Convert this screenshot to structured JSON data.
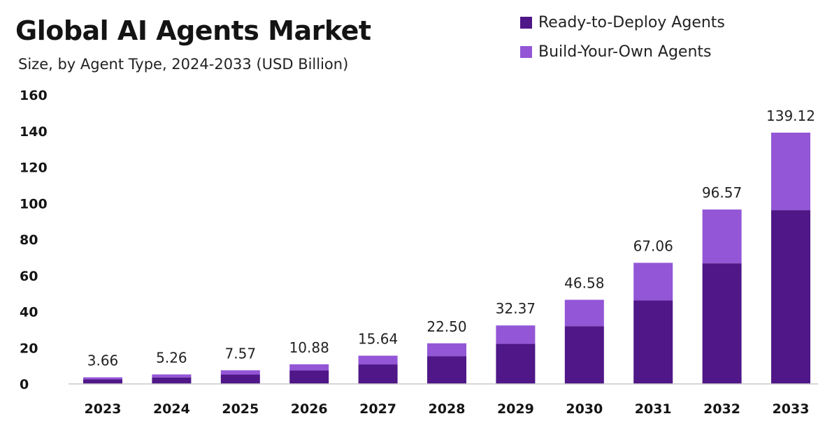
{
  "chart_data": {
    "type": "bar",
    "stacked": true,
    "title": "Global AI Agents Market",
    "subtitle": "Size, by Agent Type, 2024-2033 (USD Billion)",
    "xlabel": "",
    "ylabel": "",
    "ylim": [
      0,
      160
    ],
    "yticks": [
      0,
      20,
      40,
      60,
      80,
      100,
      120,
      140,
      160
    ],
    "grid": false,
    "legend_position": "top-right",
    "categories": [
      "2023",
      "2024",
      "2025",
      "2026",
      "2027",
      "2028",
      "2029",
      "2030",
      "2031",
      "2032",
      "2033"
    ],
    "series": [
      {
        "name": "Ready-to-Deploy Agents",
        "color": "#4f1787",
        "values": [
          2.5,
          3.6,
          5.2,
          7.5,
          10.8,
          15.4,
          22.2,
          32.0,
          46.2,
          66.8,
          96.2
        ]
      },
      {
        "name": "Build-Your-Own Agents",
        "color": "#9356d6",
        "values": [
          1.16,
          1.66,
          2.37,
          3.38,
          4.84,
          7.1,
          10.17,
          14.58,
          20.86,
          29.77,
          42.92
        ]
      }
    ],
    "totals": [
      3.66,
      5.26,
      7.57,
      10.88,
      15.64,
      22.5,
      32.37,
      46.58,
      67.06,
      96.57,
      139.12
    ],
    "total_labels": [
      "3.66",
      "5.26",
      "7.57",
      "10.88",
      "15.64",
      "22.50",
      "32.37",
      "46.58",
      "67.06",
      "96.57",
      "139.12"
    ]
  }
}
